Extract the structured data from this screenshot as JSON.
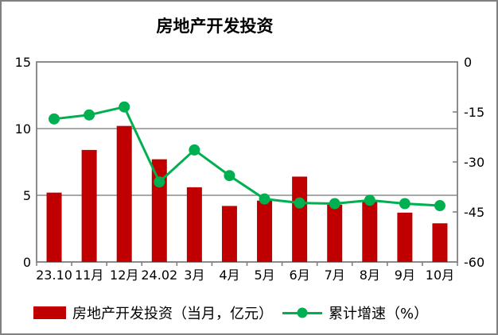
{
  "title": "房地产开发投资",
  "chart_data": {
    "type": "combo-bar-line",
    "title": "房地产开发投资",
    "categories": [
      "23.10",
      "11月",
      "12月",
      "24.02",
      "3月",
      "4月",
      "5月",
      "6月",
      "7月",
      "8月",
      "9月",
      "10月"
    ],
    "series": [
      {
        "name": "房地产开发投资（当月，亿元）",
        "type": "bar",
        "axis": "left",
        "color": "#C00000",
        "values": [
          5.2,
          8.4,
          10.2,
          7.7,
          5.6,
          4.2,
          4.6,
          6.4,
          4.3,
          4.5,
          3.7,
          2.9
        ]
      },
      {
        "name": "累计增速（%）",
        "type": "line",
        "axis": "right",
        "color": "#00B050",
        "values": [
          -17.1,
          -15.9,
          -13.5,
          -36.0,
          -26.4,
          -34.1,
          -41.1,
          -42.3,
          -42.5,
          -41.5,
          -42.5,
          -43.1
        ]
      }
    ],
    "axes": {
      "left": {
        "min": 0,
        "max": 15,
        "ticks": [
          0,
          5,
          10,
          15
        ]
      },
      "right": {
        "min": -60,
        "max": 0,
        "ticks": [
          0,
          -15,
          -30,
          -45,
          -60
        ]
      }
    },
    "grid": true,
    "legend_position": "bottom"
  },
  "colors": {
    "bar": "#C00000",
    "line": "#00B050",
    "gridline": "#8C8C8C",
    "plot_border": "#808080",
    "outer_border": "#808080",
    "text": "#000000"
  }
}
